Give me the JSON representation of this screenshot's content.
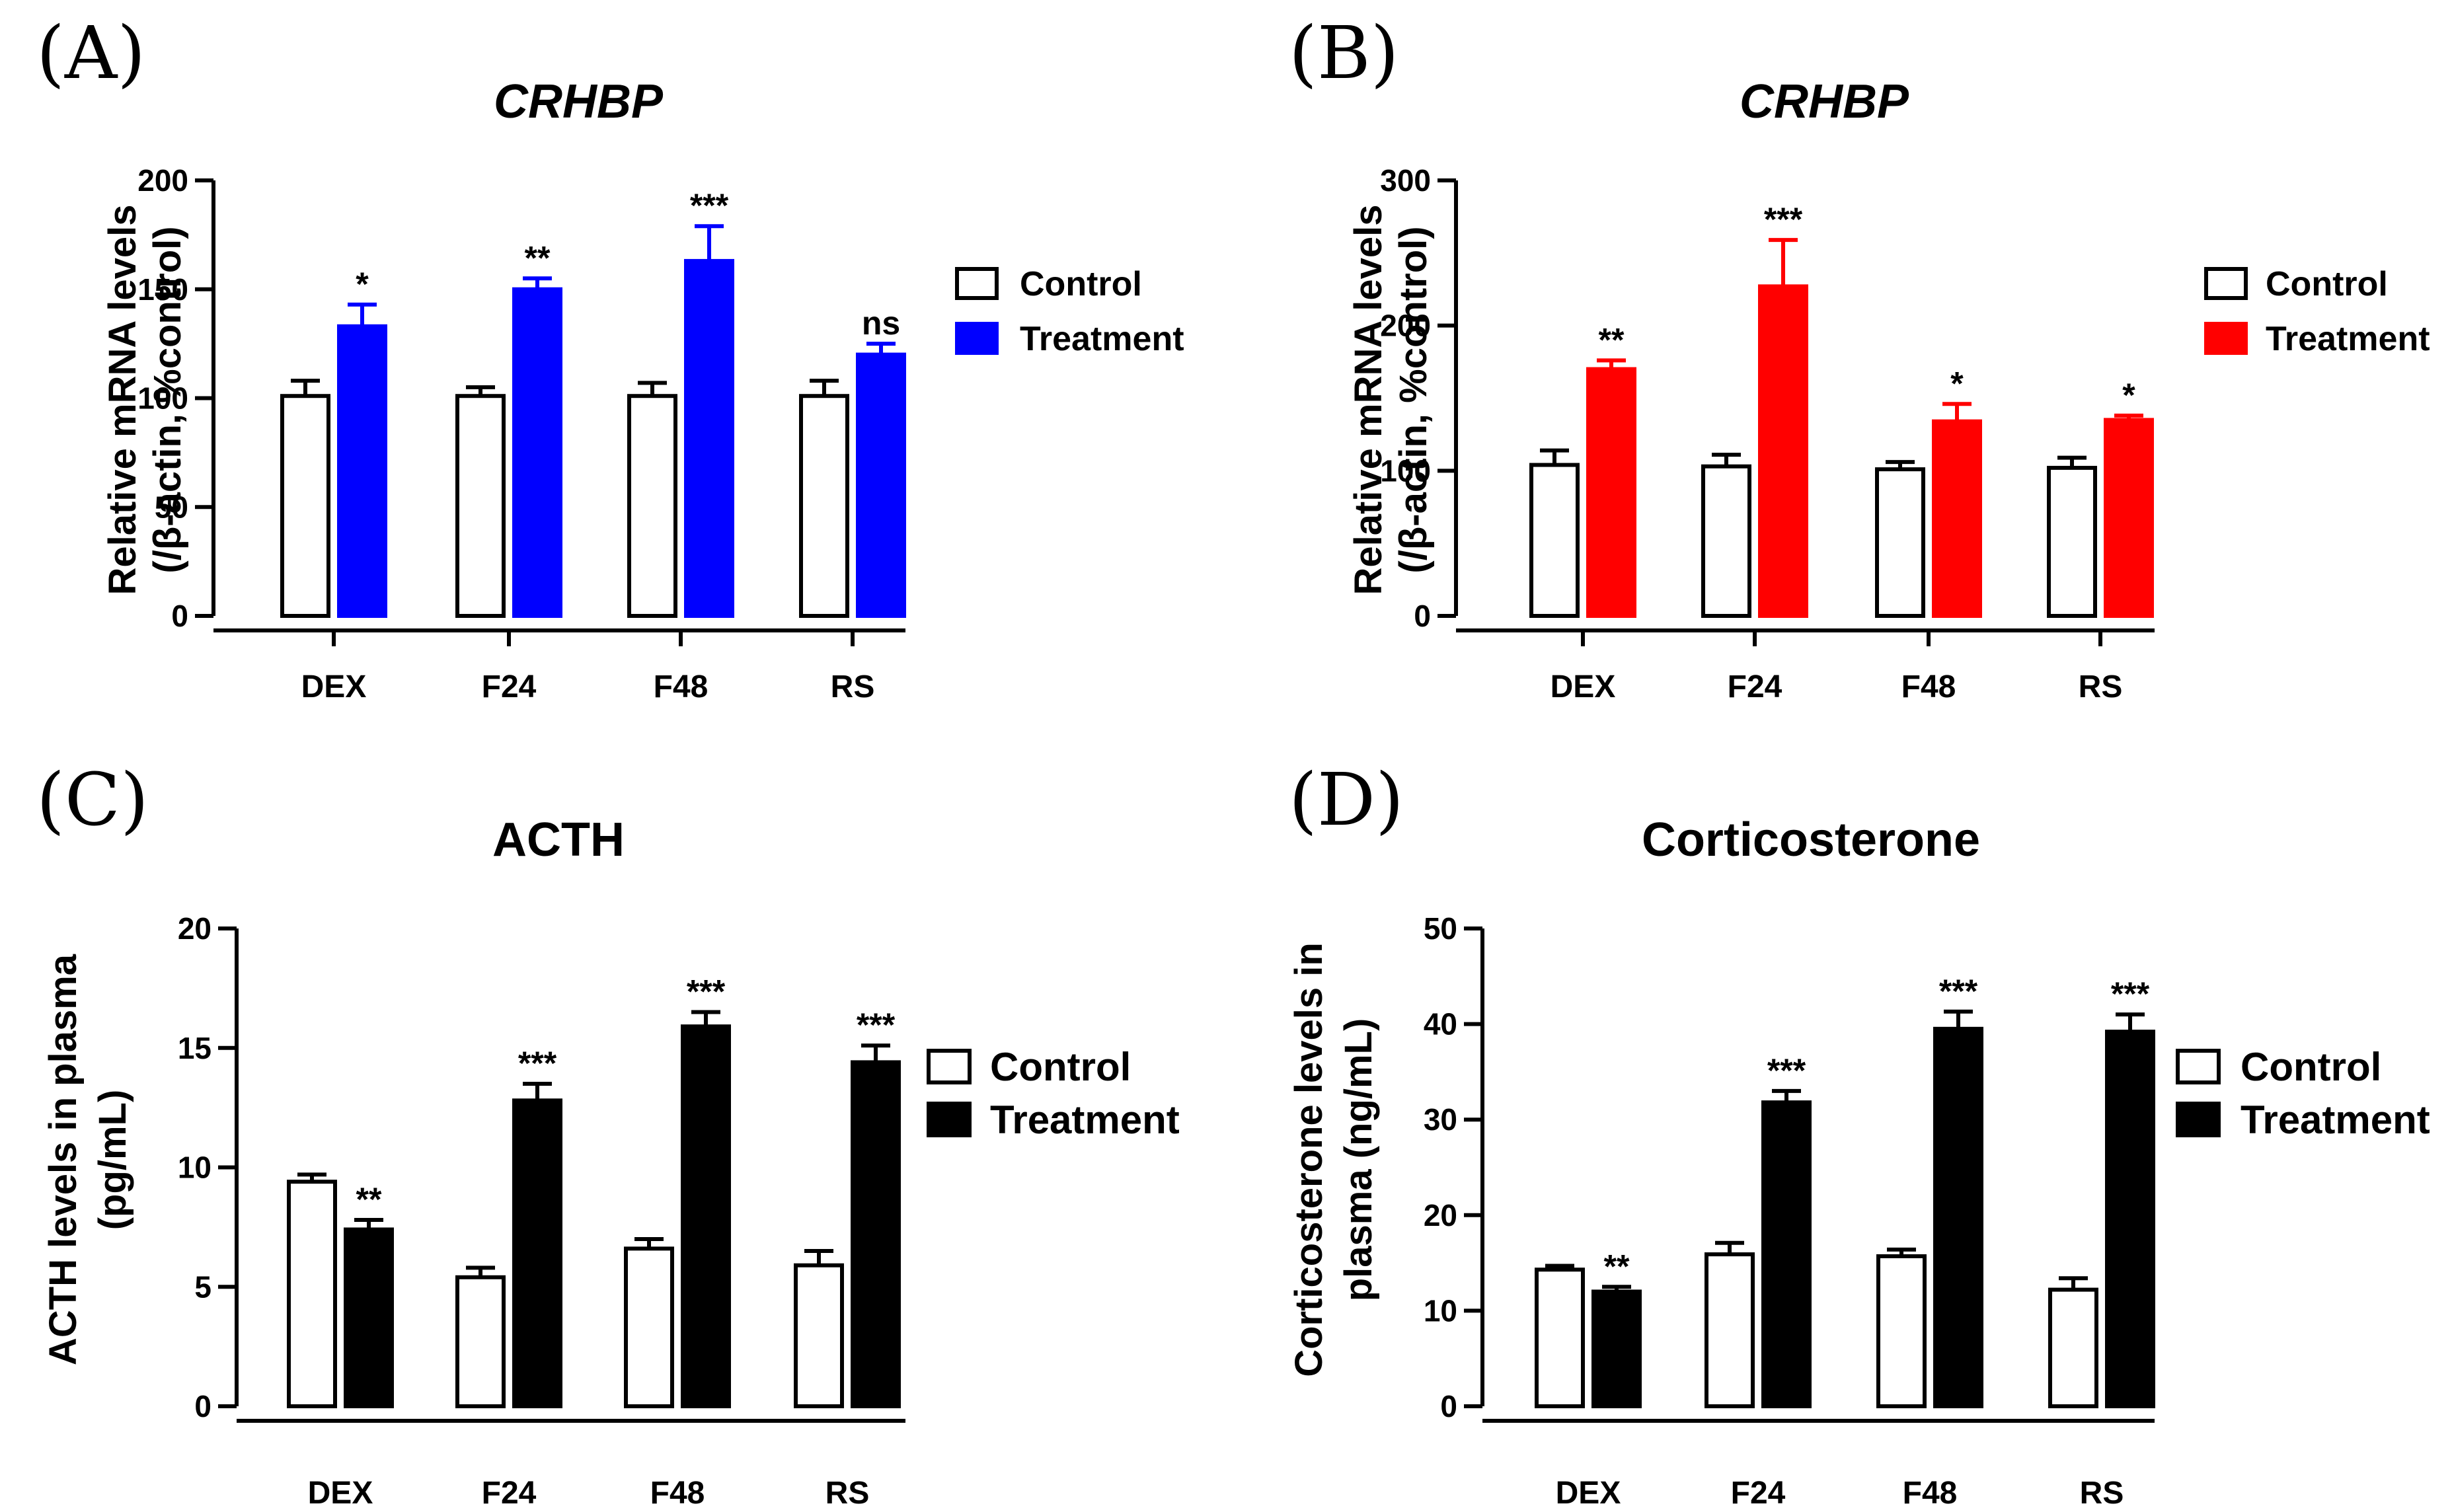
{
  "chart_data": [
    {
      "panel": "(A)",
      "type": "bar",
      "title": "CRHBP",
      "title_italic": true,
      "ylabel_lines": [
        "Relative mRNA levels",
        "(/β-actin, %control)"
      ],
      "xlabel": "",
      "categories": [
        "DEX",
        "F24",
        "F48",
        "RS"
      ],
      "ylim": [
        0,
        200
      ],
      "yticks": [
        0,
        50,
        100,
        150,
        200
      ],
      "series": [
        {
          "name": "Control",
          "values": [
            101,
            101,
            101,
            101
          ],
          "errors": [
            7,
            4,
            6,
            7
          ],
          "color": "#ffffff"
        },
        {
          "name": "Treatment",
          "values": [
            133,
            150,
            163,
            120
          ],
          "errors": [
            10,
            5,
            16,
            5
          ],
          "color": "#0000ff"
        }
      ],
      "significance": [
        "*",
        "**",
        "***",
        "ns"
      ],
      "legend": [
        "Control",
        "Treatment"
      ],
      "legend_position": "right"
    },
    {
      "panel": "(B)",
      "type": "bar",
      "title": "CRHBP",
      "title_italic": true,
      "ylabel_lines": [
        "Relative mRNA levels",
        "(/β-actin, %control)"
      ],
      "xlabel": "",
      "categories": [
        "DEX",
        "F24",
        "F48",
        "RS"
      ],
      "ylim": [
        0,
        300
      ],
      "yticks": [
        0,
        100,
        200,
        300
      ],
      "series": [
        {
          "name": "Control",
          "values": [
            104,
            103,
            101,
            102
          ],
          "errors": [
            10,
            8,
            5,
            7
          ],
          "color": "#ffffff"
        },
        {
          "name": "Treatment",
          "values": [
            170,
            227,
            134,
            135
          ],
          "errors": [
            6,
            32,
            12,
            3
          ],
          "color": "#ff0000"
        }
      ],
      "significance": [
        "**",
        "***",
        "*",
        "*"
      ],
      "legend": [
        "Control",
        "Treatment"
      ],
      "legend_position": "right"
    },
    {
      "panel": "(C)",
      "type": "bar",
      "title": "ACTH",
      "title_italic": false,
      "ylabel_lines": [
        "ACTH levels in plasma",
        "(pg/mL)"
      ],
      "xlabel": "",
      "categories": [
        "DEX",
        "F24",
        "F48",
        "RS"
      ],
      "ylim": [
        0,
        20
      ],
      "yticks": [
        0,
        5,
        10,
        15,
        20
      ],
      "series": [
        {
          "name": "Control",
          "values": [
            9.4,
            5.4,
            6.6,
            5.9
          ],
          "errors": [
            0.3,
            0.4,
            0.4,
            0.6
          ],
          "color": "#ffffff"
        },
        {
          "name": "Treatment",
          "values": [
            7.4,
            12.8,
            15.9,
            14.4
          ],
          "errors": [
            0.4,
            0.7,
            0.6,
            0.7
          ],
          "color": "#000000"
        }
      ],
      "significance": [
        "**",
        "***",
        "***",
        "***"
      ],
      "legend": [
        "Control",
        "Treatment"
      ],
      "legend_position": "right"
    },
    {
      "panel": "(D)",
      "type": "bar",
      "title": "Corticosterone",
      "title_italic": false,
      "ylabel_lines": [
        "Corticosterone levels in",
        "plasma (ng/mL)"
      ],
      "xlabel": "",
      "categories": [
        "DEX",
        "F24",
        "F48",
        "RS"
      ],
      "ylim": [
        0,
        50
      ],
      "yticks": [
        0,
        10,
        20,
        30,
        40,
        50
      ],
      "series": [
        {
          "name": "Control",
          "values": [
            14.3,
            15.9,
            15.7,
            12.2
          ],
          "errors": [
            0.4,
            1.2,
            0.7,
            1.2
          ],
          "color": "#ffffff"
        },
        {
          "name": "Treatment",
          "values": [
            12.0,
            31.8,
            39.5,
            39.2
          ],
          "errors": [
            0.5,
            1.2,
            1.8,
            1.8
          ],
          "color": "#000000"
        }
      ],
      "significance": [
        "**",
        "***",
        "***",
        "***"
      ],
      "legend": [
        "Control",
        "Treatment"
      ],
      "legend_position": "right"
    }
  ]
}
